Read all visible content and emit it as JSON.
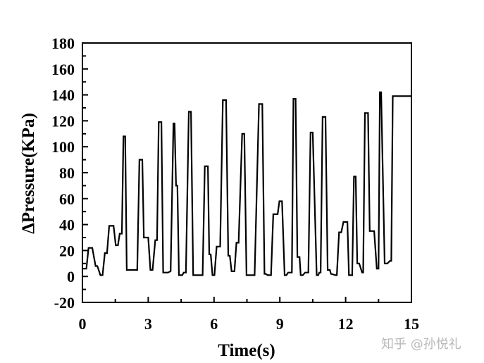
{
  "chart_data": {
    "type": "line",
    "xlabel": "Time(s)",
    "ylabel": "ΔPressure(KPa)",
    "xlim": [
      0,
      15
    ],
    "ylim": [
      -20,
      180
    ],
    "x_ticks": [
      0,
      3,
      6,
      9,
      12,
      15
    ],
    "x_tick_labels": [
      "0",
      "3",
      "6",
      "9",
      "12",
      "15"
    ],
    "y_ticks": [
      -20,
      0,
      20,
      40,
      60,
      80,
      100,
      120,
      140,
      160,
      180
    ],
    "y_tick_labels": [
      "-20",
      "0",
      "20",
      "40",
      "60",
      "80",
      "100",
      "120",
      "140",
      "160",
      "180"
    ],
    "grid": false,
    "line_color": "#000000",
    "series": [
      {
        "x": [
          0.0,
          0.18,
          0.28,
          0.45,
          0.6,
          0.68,
          0.82,
          0.92,
          1.02,
          1.12,
          1.22,
          1.42,
          1.52,
          1.62,
          1.7,
          1.8,
          1.87,
          1.95,
          2.02,
          2.12,
          2.22,
          2.5,
          2.6,
          2.73,
          2.8,
          2.88,
          3.0,
          3.1,
          3.2,
          3.32,
          3.4,
          3.48,
          3.55,
          3.6,
          3.68,
          3.8,
          3.9,
          4.02,
          4.15,
          4.2,
          4.27,
          4.33,
          4.4,
          4.48,
          4.55,
          4.62,
          4.72,
          4.85,
          4.95,
          5.05,
          5.12,
          5.18,
          5.25,
          5.32,
          5.48,
          5.58,
          5.72,
          5.78,
          5.85,
          5.93,
          6.02,
          6.12,
          6.2,
          6.28,
          6.4,
          6.55,
          6.65,
          6.72,
          6.8,
          6.87,
          6.93,
          7.02,
          7.12,
          7.28,
          7.38,
          7.48,
          7.55,
          7.62,
          7.68,
          7.75,
          7.85,
          8.05,
          8.2,
          8.3,
          8.35,
          8.45,
          8.53,
          8.6,
          8.7,
          8.9,
          8.98,
          9.1,
          9.22,
          9.3,
          9.38,
          9.45,
          9.55,
          9.62,
          9.72,
          9.8,
          9.9,
          9.95,
          10.0,
          10.05,
          10.15,
          10.3,
          10.4,
          10.5,
          10.68,
          10.75,
          10.8,
          10.86,
          10.95,
          11.08,
          11.18,
          11.28,
          11.33,
          11.55,
          11.6,
          11.7,
          11.8,
          11.9,
          12.08,
          12.15,
          12.3,
          12.38,
          12.46,
          12.53,
          12.62,
          12.75,
          12.8,
          12.88,
          13.02,
          13.1,
          13.2,
          13.3,
          13.42,
          13.5,
          13.56,
          13.62,
          13.78,
          13.9,
          14.02,
          14.08,
          14.15,
          14.22,
          14.28,
          14.36,
          14.55,
          14.62,
          14.75,
          14.82,
          14.9,
          15.0
        ],
        "y": [
          6,
          6,
          22,
          22,
          8,
          8,
          1,
          1,
          18,
          18,
          39,
          39,
          24,
          24,
          33,
          33,
          108,
          108,
          5,
          5,
          5,
          5,
          90,
          90,
          30,
          30,
          30,
          5,
          5,
          28,
          28,
          119,
          119,
          119,
          3,
          3,
          3,
          4,
          118,
          118,
          70,
          70,
          1,
          1,
          1,
          3,
          3,
          127,
          127,
          1,
          1,
          1,
          1,
          1,
          1,
          85,
          85,
          17,
          17,
          1,
          1,
          23,
          23,
          23,
          136,
          136,
          16,
          16,
          4,
          4,
          4,
          26,
          26,
          110,
          110,
          1,
          1,
          1,
          1,
          1,
          1,
          133,
          133,
          2,
          2,
          1,
          1,
          1,
          48,
          48,
          58,
          58,
          1,
          1,
          3,
          3,
          3,
          137,
          137,
          15,
          15,
          1,
          1,
          1,
          3,
          3,
          111,
          111,
          1,
          1,
          3,
          3,
          123,
          123,
          5,
          5,
          2,
          1,
          1,
          34,
          34,
          42,
          42,
          1,
          1,
          77,
          77,
          10,
          10,
          3,
          3,
          126,
          126,
          35,
          35,
          35,
          6,
          6,
          142,
          142,
          10,
          10,
          12,
          12,
          139,
          139,
          139,
          139,
          139,
          139,
          139,
          139,
          139,
          139
        ]
      }
    ]
  },
  "watermark": {
    "text": "知乎 @孙悦礼"
  }
}
